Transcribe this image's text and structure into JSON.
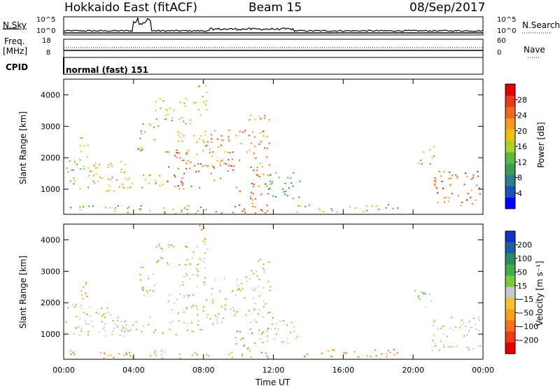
{
  "header": {
    "radar": "Hokkaido East (fitACF)",
    "beam": "Beam 15",
    "date": "08/Sep/2017"
  },
  "noise_panel": {
    "left_label": "N.Sky",
    "left_ticks": [
      "10^5",
      "10^0"
    ],
    "right_label": "N.Search",
    "right_ticks": [
      "10^5",
      "10^0"
    ]
  },
  "freq_panel": {
    "left_label_1": "Freq.",
    "left_label_2": "[MHz]",
    "left_ticks": [
      "18",
      "8"
    ],
    "right_label": "Nave",
    "right_ticks": [
      "60",
      "0"
    ]
  },
  "cpid": {
    "label": "CPID",
    "mode": "normal (fast) 151"
  },
  "colors": {
    "power_scale": [
      "#0000ff",
      "#1f4fbf",
      "#2e7d8c",
      "#3a9a5a",
      "#5cb83c",
      "#a6d22a",
      "#f0c010",
      "#f59a1c",
      "#f0681e",
      "#e83a1c",
      "#e00000"
    ],
    "velocity_scale": [
      "#e00000",
      "#ee3a10",
      "#f5701c",
      "#f7a020",
      "#f2c236",
      "#c8c8c8",
      "#7ac840",
      "#3cae4a",
      "#2e8a60",
      "#1f5fa6",
      "#1432c8"
    ]
  },
  "chart_data": [
    {
      "type": "heatmap",
      "name": "power",
      "ylabel": "Slant Range [km]",
      "yticks": [
        1000,
        2000,
        3000,
        4000
      ],
      "ylim": [
        200,
        4500
      ],
      "xticks": [
        "00:00",
        "04:00",
        "08:00",
        "12:00",
        "16:00",
        "20:00",
        "00:00"
      ],
      "xlim_hours": [
        0,
        24
      ],
      "colorbar": {
        "label": "Power [dB]",
        "ticks": [
          4,
          8,
          12,
          16,
          20,
          24,
          28
        ],
        "range": [
          0,
          32
        ]
      },
      "bands": [
        {
          "t0": 0.1,
          "t1": 1.0,
          "r0": 950,
          "r1": 2000,
          "level": 14
        },
        {
          "t0": 0.9,
          "t1": 1.4,
          "r0": 1500,
          "r1": 2700,
          "level": 16
        },
        {
          "t0": 1.2,
          "t1": 3.5,
          "r0": 950,
          "r1": 1900,
          "level": 20
        },
        {
          "t0": 3.0,
          "t1": 5.8,
          "r0": 1050,
          "r1": 1600,
          "level": 18
        },
        {
          "t0": 4.2,
          "t1": 5.2,
          "r0": 2200,
          "r1": 3200,
          "level": 14
        },
        {
          "t0": 5.2,
          "t1": 6.3,
          "r0": 3000,
          "r1": 3900,
          "level": 16
        },
        {
          "t0": 5.8,
          "t1": 8.0,
          "r0": 1000,
          "r1": 2300,
          "level": 26
        },
        {
          "t0": 6.5,
          "t1": 8.2,
          "r0": 2500,
          "r1": 3900,
          "level": 18
        },
        {
          "t0": 7.6,
          "t1": 8.4,
          "r0": 3900,
          "r1": 4500,
          "level": 20
        },
        {
          "t0": 8.0,
          "t1": 9.2,
          "r0": 1300,
          "r1": 2900,
          "level": 24
        },
        {
          "t0": 9.2,
          "t1": 10.6,
          "r0": 1600,
          "r1": 2900,
          "level": 26
        },
        {
          "t0": 10.6,
          "t1": 11.8,
          "r0": 1400,
          "r1": 3400,
          "level": 24
        },
        {
          "t0": 9.8,
          "t1": 11.9,
          "r0": 250,
          "r1": 1200,
          "level": 26
        },
        {
          "t0": 11.6,
          "t1": 13.5,
          "r0": 700,
          "r1": 1600,
          "level": 10
        },
        {
          "t0": 13.3,
          "t1": 19.5,
          "r0": 280,
          "r1": 550,
          "level": 14
        },
        {
          "t0": 20.0,
          "t1": 21.2,
          "r0": 1800,
          "r1": 2400,
          "level": 14
        },
        {
          "t0": 21.0,
          "t1": 23.8,
          "r0": 500,
          "r1": 1600,
          "level": 26
        },
        {
          "t0": 0.0,
          "t1": 10.0,
          "r0": 250,
          "r1": 500,
          "level": 12
        }
      ]
    },
    {
      "type": "heatmap",
      "name": "velocity",
      "ylabel": "Slant Range [km]",
      "yticks": [
        1000,
        2000,
        3000,
        4000
      ],
      "ylim": [
        200,
        4500
      ],
      "xticks": [
        "00:00",
        "04:00",
        "08:00",
        "12:00",
        "16:00",
        "20:00",
        "00:00"
      ],
      "xlim_hours": [
        0,
        24
      ],
      "xlabel": "Time UT",
      "colorbar": {
        "label": "Velocity [m s⁻¹]",
        "ticks": [
          "200",
          "100",
          "50",
          "15",
          "−15",
          "−50",
          "−100",
          "−200"
        ]
      },
      "bands": [
        {
          "t0": 0.1,
          "t1": 1.0,
          "r0": 950,
          "r1": 2000,
          "level": 0
        },
        {
          "t0": 0.9,
          "t1": 1.4,
          "r0": 1500,
          "r1": 2700,
          "level": -40
        },
        {
          "t0": 1.2,
          "t1": 3.5,
          "r0": 950,
          "r1": 1900,
          "level": 0
        },
        {
          "t0": 3.0,
          "t1": 5.8,
          "r0": 1050,
          "r1": 1600,
          "level": 0
        },
        {
          "t0": 4.2,
          "t1": 5.2,
          "r0": 2200,
          "r1": 3200,
          "level": 0
        },
        {
          "t0": 5.2,
          "t1": 6.3,
          "r0": 3000,
          "r1": 3900,
          "level": -30
        },
        {
          "t0": 5.8,
          "t1": 8.0,
          "r0": 1000,
          "r1": 2300,
          "level": 0
        },
        {
          "t0": 6.5,
          "t1": 8.2,
          "r0": 2500,
          "r1": 3900,
          "level": 0
        },
        {
          "t0": 7.6,
          "t1": 8.4,
          "r0": 3900,
          "r1": 4500,
          "level": -40
        },
        {
          "t0": 8.0,
          "t1": 9.2,
          "r0": 1300,
          "r1": 2900,
          "level": 0
        },
        {
          "t0": 9.2,
          "t1": 10.6,
          "r0": 1600,
          "r1": 2900,
          "level": 0
        },
        {
          "t0": 10.6,
          "t1": 11.8,
          "r0": 1400,
          "r1": 3400,
          "level": 0
        },
        {
          "t0": 9.8,
          "t1": 11.9,
          "r0": 250,
          "r1": 1200,
          "level": 40
        },
        {
          "t0": 11.6,
          "t1": 13.5,
          "r0": 700,
          "r1": 1600,
          "level": 0
        },
        {
          "t0": 13.3,
          "t1": 19.5,
          "r0": 280,
          "r1": 550,
          "level": -60
        },
        {
          "t0": 20.0,
          "t1": 21.2,
          "r0": 1800,
          "r1": 2400,
          "level": 30
        },
        {
          "t0": 21.0,
          "t1": 23.8,
          "r0": 500,
          "r1": 1600,
          "level": 0
        },
        {
          "t0": 0.0,
          "t1": 10.0,
          "r0": 250,
          "r1": 500,
          "level": -40
        }
      ]
    }
  ]
}
